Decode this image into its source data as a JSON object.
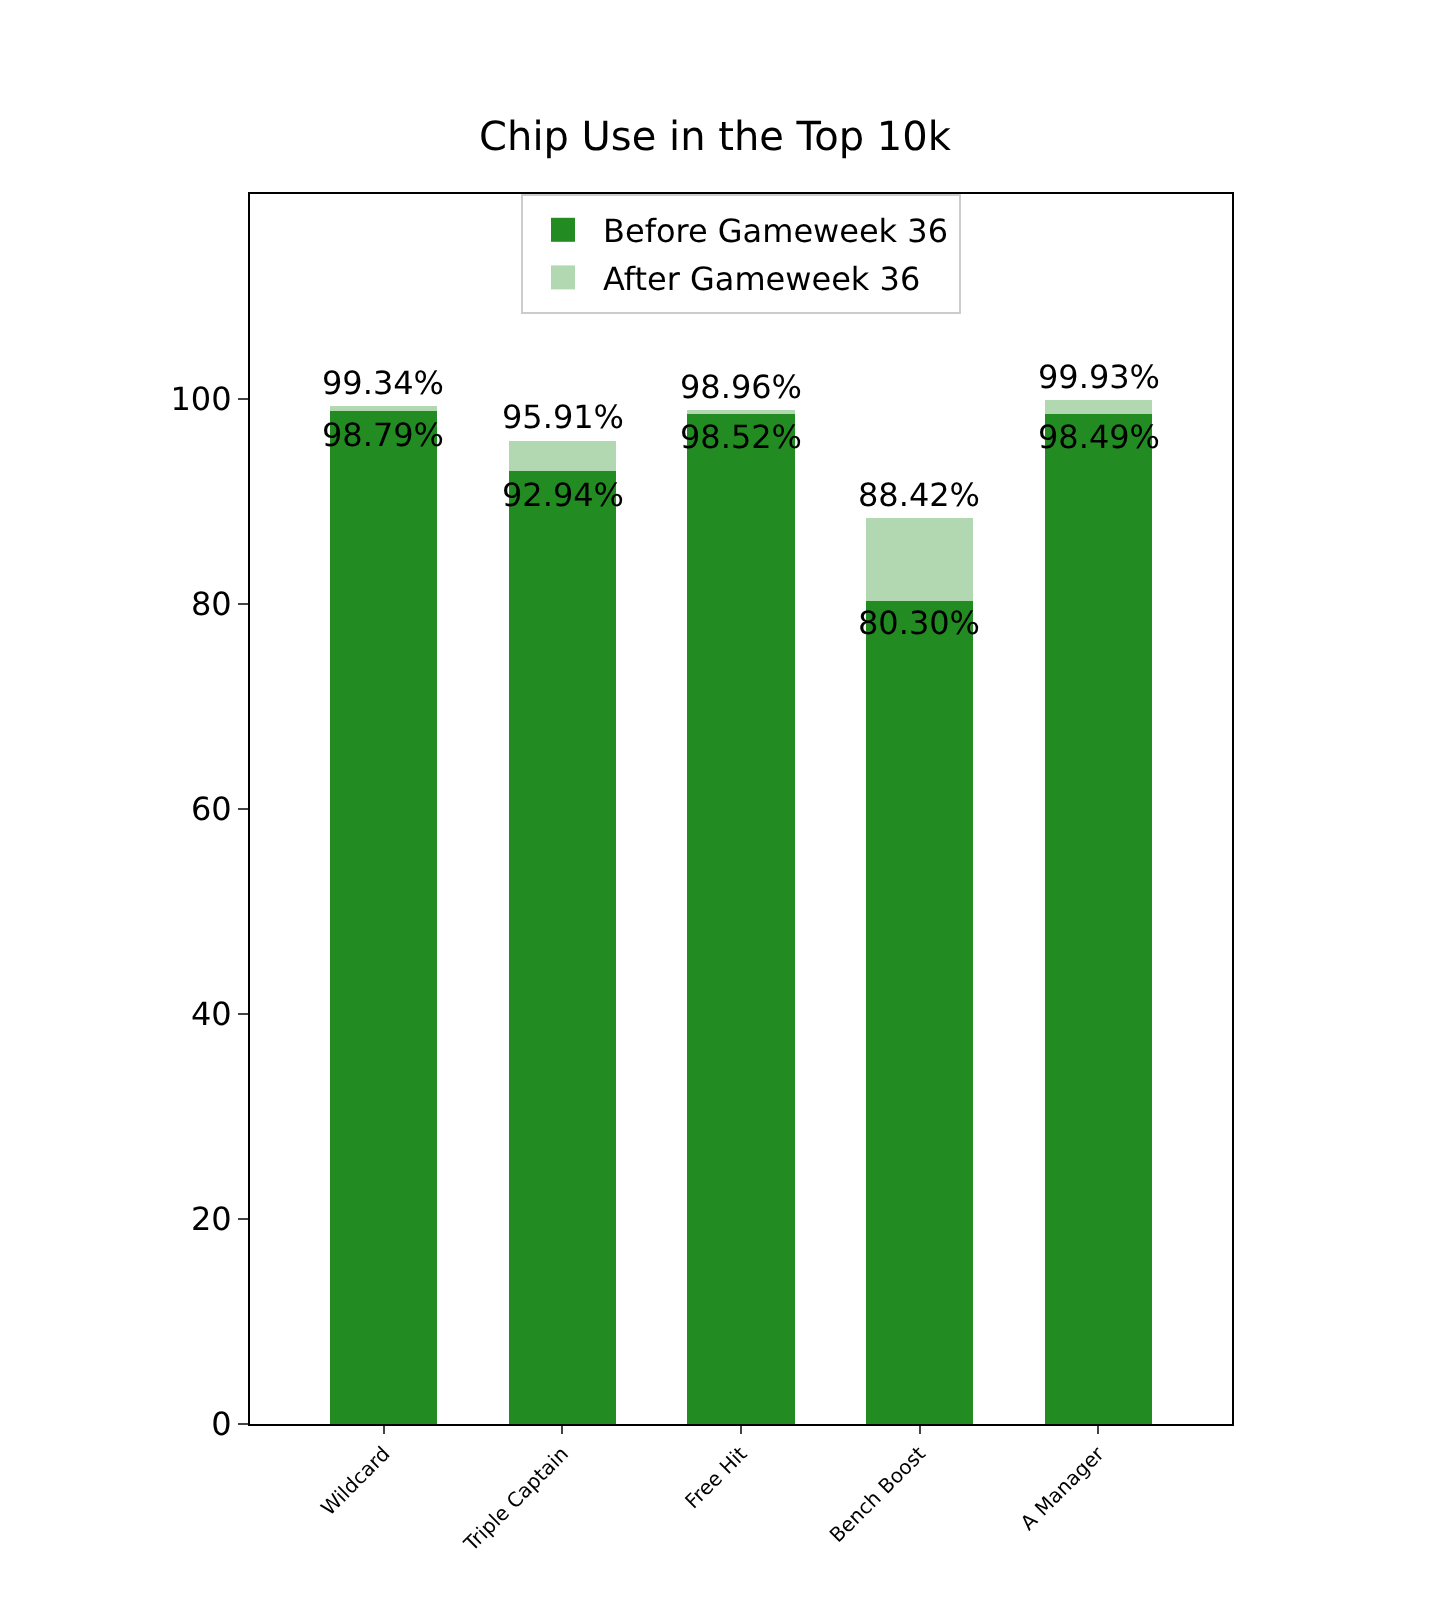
{
  "chart_data": {
    "type": "bar",
    "title": "Chip Use in the Top 10k",
    "categories": [
      "Wildcard",
      "Triple Captain",
      "Free Hit",
      "Bench Boost",
      "A Manager"
    ],
    "series": [
      {
        "name": "Before Gameweek 36",
        "color": "#228b22",
        "values": [
          98.79,
          92.94,
          98.52,
          80.3,
          98.49
        ],
        "value_labels": [
          "98.79%",
          "92.94%",
          "98.52%",
          "80.30%",
          "98.49%"
        ]
      },
      {
        "name": "After Gameweek 36",
        "color": "#b2d8b2",
        "values": [
          0.55,
          2.97,
          0.44,
          8.12,
          1.44
        ]
      }
    ],
    "totals": [
      "99.34%",
      "95.91%",
      "98.96%",
      "88.42%",
      "99.93%"
    ],
    "stacked": true,
    "ylim": [
      0,
      120
    ],
    "yticks": [
      0,
      20,
      40,
      60,
      80,
      100
    ],
    "grid": false,
    "legend": "top"
  }
}
